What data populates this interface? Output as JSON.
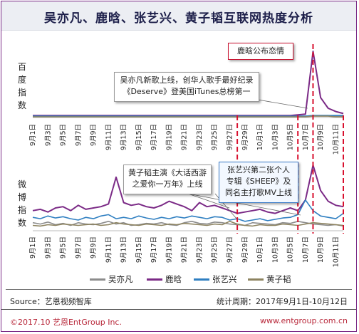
{
  "title": "吴亦凡、鹿晗、张艺兴、黄子韬互联网热度分析",
  "panel_labels": {
    "top": [
      "百",
      "度",
      "指",
      "数"
    ],
    "bottom": [
      "微",
      "博",
      "指",
      "数"
    ]
  },
  "annotations": {
    "luhan": "鹿晗公布恋情",
    "wyf_line1": "吴亦凡新歌上线，创华人歌手最好纪录",
    "wyf_line2": "《Deserve》登美国iTunes总榜第一",
    "hzt_line1": "黄子韬主演《大话西游",
    "hzt_line2": "之爱你一万年》上线",
    "zyx_line1": "张艺兴第二张个人",
    "zyx_line2": "专辑《SHEEP》及",
    "zyx_line3": "同名主打歌MV上线"
  },
  "footer": {
    "source": "Source：艺恩视频智库",
    "period": "统计周期：2017年9月1日-10月12日",
    "copyright": "©2017.10  艺恩EntGroup Inc.",
    "website": "www.entgroup.com.cn"
  },
  "colors": {
    "吴亦凡": "#8c8c8c",
    "鹿晗": "#7b2a86",
    "张艺兴": "#2f7fc1",
    "黄子韬": "#8d8360",
    "event_line": "#d8102e",
    "frame": "#7b2a86"
  },
  "chart_data": [
    {
      "type": "line",
      "panel": "百度指数",
      "x": [
        "9月1日",
        "9月2日",
        "9月3日",
        "9月4日",
        "9月5日",
        "9月6日",
        "9月7日",
        "9月8日",
        "9月9日",
        "9月10日",
        "9月11日",
        "9月12日",
        "9月13日",
        "9月14日",
        "9月15日",
        "9月16日",
        "9月17日",
        "9月18日",
        "9月19日",
        "9月20日",
        "9月21日",
        "9月22日",
        "9月23日",
        "9月24日",
        "9月25日",
        "9月26日",
        "9月27日",
        "9月28日",
        "9月29日",
        "9月30日",
        "10月1日",
        "10月2日",
        "10月3日",
        "10月4日",
        "10月5日",
        "10月6日",
        "10月7日",
        "10月8日",
        "10月9日",
        "10月10日",
        "10月11日",
        "10月12日"
      ],
      "x_tick_labels": [
        "9月1日",
        "9月3日",
        "9月5日",
        "9月7日",
        "9月9日",
        "9月11日",
        "9月13日",
        "9月15日",
        "9月17日",
        "9月19日",
        "9月21日",
        "9月23日",
        "9月25日",
        "9月27日",
        "9月29日",
        "10月1日",
        "10月3日",
        "10月5日",
        "10月7日",
        "10月9日",
        "10月11日"
      ],
      "ylim": [
        0,
        100
      ],
      "series": [
        {
          "name": "吴亦凡",
          "values": [
            2,
            2,
            2,
            2,
            2,
            2,
            2,
            2,
            2,
            2,
            2,
            2,
            2,
            2,
            2,
            2,
            2,
            2,
            2,
            2,
            2,
            2,
            2,
            2,
            2,
            2,
            2,
            2,
            2,
            2,
            2,
            2,
            2,
            2,
            2,
            2,
            2,
            3,
            3,
            3,
            2,
            2
          ]
        },
        {
          "name": "鹿晗",
          "values": [
            3,
            3,
            3,
            3,
            3,
            3,
            3,
            3,
            3,
            3,
            3,
            3,
            3,
            3,
            3,
            3,
            3,
            3,
            3,
            3,
            3,
            3,
            3,
            3,
            3,
            3,
            3,
            3,
            3,
            3,
            3,
            3,
            3,
            3,
            3,
            4,
            5,
            100,
            30,
            14,
            9,
            6
          ]
        },
        {
          "name": "张艺兴",
          "values": [
            2,
            2,
            2,
            2,
            2,
            2,
            2,
            2,
            2,
            2,
            2,
            2,
            2,
            2,
            2,
            2,
            2,
            2,
            2,
            2,
            2,
            2,
            2,
            2,
            2,
            2,
            2,
            2,
            2,
            2,
            2,
            2,
            2,
            2,
            2,
            2,
            2,
            3,
            3,
            3,
            3,
            3
          ]
        },
        {
          "name": "黄子韬",
          "values": [
            1,
            1,
            1,
            1,
            1,
            1,
            1,
            1,
            1,
            1,
            1,
            1,
            1,
            1,
            1,
            1,
            1,
            1,
            1,
            1,
            1,
            1,
            1,
            1,
            1,
            1,
            1,
            1,
            1,
            1,
            1,
            1,
            1,
            1,
            1,
            1,
            1,
            2,
            2,
            2,
            1,
            1
          ]
        }
      ]
    },
    {
      "type": "line",
      "panel": "微博指数",
      "x": [
        "9月1日",
        "9月2日",
        "9月3日",
        "9月4日",
        "9月5日",
        "9月6日",
        "9月7日",
        "9月8日",
        "9月9日",
        "9月10日",
        "9月11日",
        "9月12日",
        "9月13日",
        "9月14日",
        "9月15日",
        "9月16日",
        "9月17日",
        "9月18日",
        "9月19日",
        "9月20日",
        "9月21日",
        "9月22日",
        "9月23日",
        "9月24日",
        "9月25日",
        "9月26日",
        "9月27日",
        "9月28日",
        "9月29日",
        "9月30日",
        "10月1日",
        "10月2日",
        "10月3日",
        "10月4日",
        "10月5日",
        "10月6日",
        "10月7日",
        "10月8日",
        "10月9日",
        "10月10日",
        "10月11日",
        "10月12日"
      ],
      "x_tick_labels": [
        "9月1日",
        "9月3日",
        "9月5日",
        "9月7日",
        "9月9日",
        "9月11日",
        "9月13日",
        "9月15日",
        "9月17日",
        "9月19日",
        "9月21日",
        "9月23日",
        "9月25日",
        "9月27日",
        "9月29日",
        "10月1日",
        "10月3日",
        "10月5日",
        "10月7日",
        "10月9日",
        "10月11日"
      ],
      "ylim": [
        0,
        100
      ],
      "series": [
        {
          "name": "吴亦凡",
          "values": [
            12,
            10,
            13,
            9,
            11,
            8,
            12,
            10,
            9,
            11,
            14,
            10,
            12,
            8,
            9,
            11,
            10,
            12,
            9,
            8,
            12,
            14,
            11,
            10,
            13,
            12,
            10,
            9,
            8,
            12,
            11,
            10,
            9,
            12,
            11,
            14,
            12,
            10,
            9,
            8,
            9,
            7
          ]
        },
        {
          "name": "鹿晗",
          "values": [
            30,
            32,
            28,
            34,
            36,
            30,
            38,
            32,
            34,
            36,
            40,
            80,
            42,
            38,
            40,
            36,
            34,
            38,
            44,
            40,
            36,
            30,
            42,
            36,
            38,
            34,
            30,
            26,
            28,
            30,
            32,
            28,
            26,
            30,
            34,
            30,
            46,
            98,
            60,
            44,
            38,
            36
          ]
        },
        {
          "name": "张艺兴",
          "values": [
            20,
            18,
            22,
            19,
            21,
            18,
            16,
            20,
            18,
            22,
            24,
            18,
            20,
            18,
            22,
            19,
            17,
            20,
            18,
            21,
            19,
            22,
            20,
            18,
            21,
            20,
            16,
            18,
            14,
            16,
            18,
            15,
            17,
            19,
            20,
            24,
            46,
            30,
            22,
            20,
            18,
            26
          ]
        },
        {
          "name": "黄子韬",
          "values": [
            8,
            7,
            9,
            8,
            10,
            9,
            8,
            9,
            10,
            8,
            9,
            12,
            10,
            9,
            8,
            10,
            9,
            8,
            10,
            9,
            11,
            10,
            9,
            8,
            10,
            9,
            14,
            10,
            8,
            7,
            9,
            8,
            8,
            10,
            9,
            8,
            10,
            12,
            11,
            10,
            9,
            8
          ]
        }
      ]
    }
  ],
  "legend": [
    "吴亦凡",
    "鹿晗",
    "张艺兴",
    "黄子韬"
  ]
}
